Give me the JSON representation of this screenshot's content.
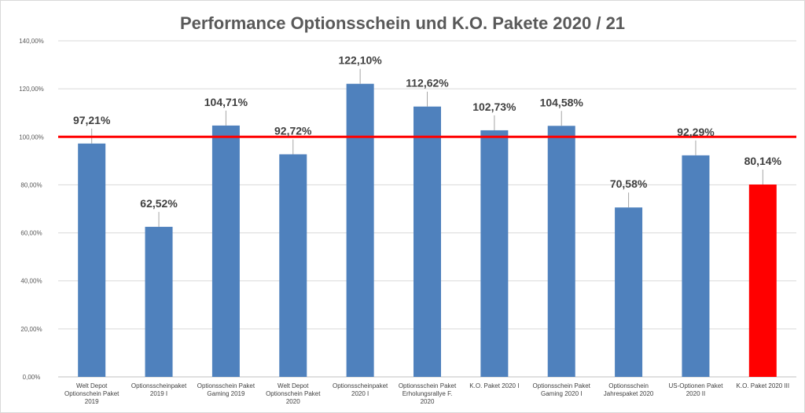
{
  "chart_data": {
    "type": "bar",
    "title": "Performance Optionsschein und K.O. Pakete 2020 / 21",
    "categories": [
      [
        "Welt Depot",
        "Optionschein Paket",
        "2019"
      ],
      [
        "Optionsscheinpaket",
        "2019 I"
      ],
      [
        "Optionsschein Paket",
        "Gaming 2019"
      ],
      [
        "Welt Depot",
        "Optionschein Paket",
        "2020"
      ],
      [
        "Optionsscheinpaket",
        "2020 I"
      ],
      [
        "Optionsschein Paket",
        "Erholungsrallye F.",
        "2020"
      ],
      [
        "K.O. Paket 2020 I"
      ],
      [
        "Optionsschein Paket",
        "Gaming 2020 I"
      ],
      [
        "Optionsschein",
        "Jahrespaket 2020"
      ],
      [
        "US-Optionen Paket",
        "2020 II"
      ],
      [
        "K.O. Paket 2020 III"
      ]
    ],
    "values": [
      97.21,
      62.52,
      104.71,
      92.72,
      122.1,
      112.62,
      102.73,
      104.58,
      70.58,
      92.29,
      80.14
    ],
    "data_labels": [
      "97,21%",
      "62,52%",
      "104,71%",
      "92,72%",
      "122,10%",
      "112,62%",
      "102,73%",
      "104,58%",
      "70,58%",
      "92,29%",
      "80,14%"
    ],
    "bar_colors": [
      "#4f81bd",
      "#4f81bd",
      "#4f81bd",
      "#4f81bd",
      "#4f81bd",
      "#4f81bd",
      "#4f81bd",
      "#4f81bd",
      "#4f81bd",
      "#4f81bd",
      "#ff0000"
    ],
    "ylim": [
      0,
      140
    ],
    "ytick_values": [
      0,
      20,
      40,
      60,
      80,
      100,
      120,
      140
    ],
    "ytick_labels": [
      "0,00%",
      "20,00%",
      "40,00%",
      "60,00%",
      "80,00%",
      "100,00%",
      "120,00%",
      "140,00%"
    ],
    "reference_line": {
      "value": 100,
      "color": "#ff0000"
    },
    "grid": true,
    "legend": "none",
    "xlabel": "",
    "ylabel": ""
  }
}
